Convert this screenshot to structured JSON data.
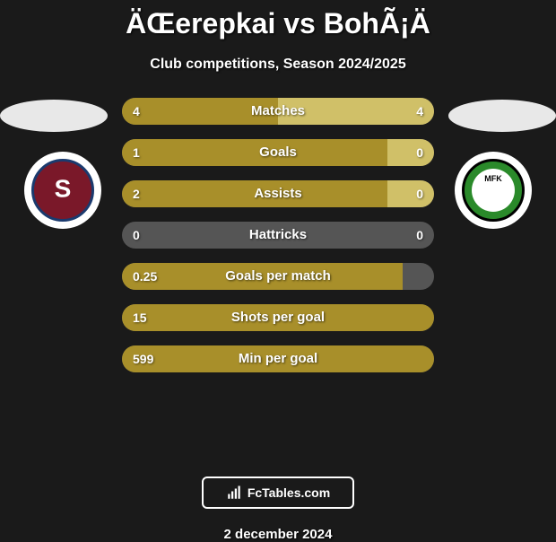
{
  "title": "ÄŒerepkai vs BohÃ¡Ä",
  "subtitle": "Club competitions, Season 2024/2025",
  "date": "2 december 2024",
  "footer_label": "FcTables.com",
  "colors": {
    "bar_left": "#a88f2a",
    "bar_right": "#d0c068",
    "bar_bg": "#555555",
    "text": "#ffffff"
  },
  "stats": [
    {
      "label": "Matches",
      "left_val": "4",
      "right_val": "4",
      "left_pct": 50,
      "right_pct": 50
    },
    {
      "label": "Goals",
      "left_val": "1",
      "right_val": "0",
      "left_pct": 85,
      "right_pct": 15
    },
    {
      "label": "Assists",
      "left_val": "2",
      "right_val": "0",
      "left_pct": 85,
      "right_pct": 15
    },
    {
      "label": "Hattricks",
      "left_val": "0",
      "right_val": "0",
      "left_pct": 0,
      "right_pct": 0
    },
    {
      "label": "Goals per match",
      "left_val": "0.25",
      "right_val": "",
      "left_pct": 90,
      "right_pct": 0
    },
    {
      "label": "Shots per goal",
      "left_val": "15",
      "right_val": "",
      "left_pct": 100,
      "right_pct": 0
    },
    {
      "label": "Min per goal",
      "left_val": "599",
      "right_val": "",
      "left_pct": 100,
      "right_pct": 0
    }
  ]
}
